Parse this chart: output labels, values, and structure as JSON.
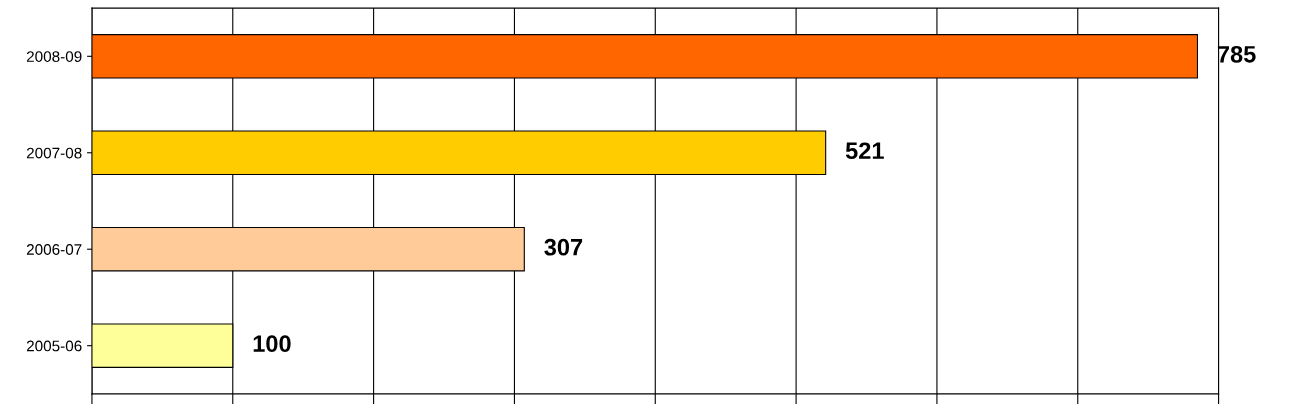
{
  "chart_data": {
    "type": "bar",
    "orientation": "horizontal",
    "categories": [
      "2008-09",
      "2007-08",
      "2006-07",
      "2005-06"
    ],
    "values": [
      785,
      521,
      307,
      100
    ],
    "colors": [
      "#ff6600",
      "#ffcc00",
      "#ffcc99",
      "#ffff99"
    ],
    "xlim": [
      0,
      800
    ],
    "xticks": [
      {
        "value": 0,
        "label": null
      },
      {
        "value": 100,
        "label": null
      },
      {
        "value": 200,
        "label": null
      },
      {
        "value": 300,
        "label": null
      },
      {
        "value": 400,
        "label": null
      },
      {
        "value": 500,
        "label": null
      },
      {
        "value": 600,
        "label": null
      },
      {
        "value": 700,
        "label": null
      },
      {
        "value": 800,
        "label": null
      }
    ],
    "grid": "x",
    "data_labels": true,
    "legend": false
  }
}
